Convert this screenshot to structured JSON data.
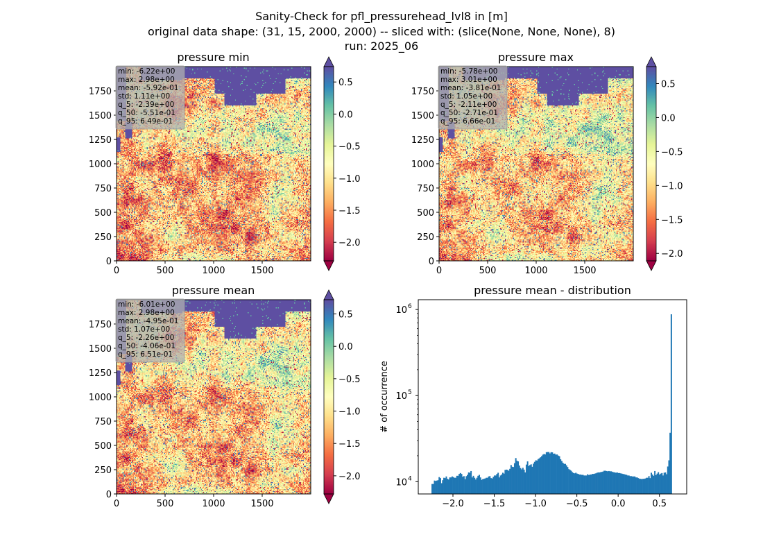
{
  "figure": {
    "title_lines": [
      "Sanity-Check for pfl_pressurehead_lvl8 in [m]",
      "original data shape: (31, 15, 2000, 2000) -- sliced with: (slice(None, None, None), 8)",
      "run: 2025_06"
    ]
  },
  "colors": {
    "colormap": "Spectral",
    "ocean": "#5e4fa2",
    "hist_bar": "#1f77b4",
    "stats_box": "#b0b0b0"
  },
  "chart_data": [
    {
      "type": "heatmap",
      "title": "pressure min",
      "colormap": "Spectral",
      "x_ticks": [
        "0",
        "500",
        "1000",
        "1500"
      ],
      "x_tick_values": [
        0,
        500,
        1000,
        1500
      ],
      "y_ticks": [
        "0",
        "250",
        "500",
        "750",
        "1000",
        "1250",
        "1500",
        "1750"
      ],
      "y_tick_values": [
        0,
        250,
        500,
        750,
        1000,
        1250,
        1500,
        1750
      ],
      "xlim": [
        0,
        2000
      ],
      "ylim": [
        0,
        2000
      ],
      "colorbar_ticks": [
        "0.5",
        "0.0",
        "−0.5",
        "−1.0",
        "−1.5",
        "−2.0"
      ],
      "colorbar_tick_values": [
        0.5,
        0.0,
        -0.5,
        -1.0,
        -1.5,
        -2.0
      ],
      "colorbar_range": [
        -2.29,
        0.74
      ],
      "seed": 11,
      "stats": [
        "min: -6.22e+00",
        "max: 2.98e+00",
        "mean: -5.92e-01",
        "std: 1.11e+00",
        "q_5: -2.39e+00",
        "q_50: -5.51e-01",
        "q_95: 6.49e-01"
      ]
    },
    {
      "type": "heatmap",
      "title": "pressure max",
      "colormap": "Spectral",
      "x_ticks": [
        "0",
        "500",
        "1000",
        "1500"
      ],
      "x_tick_values": [
        0,
        500,
        1000,
        1500
      ],
      "y_ticks": [
        "0",
        "250",
        "500",
        "750",
        "1000",
        "1250",
        "1500",
        "1750"
      ],
      "y_tick_values": [
        0,
        250,
        500,
        750,
        1000,
        1250,
        1500,
        1750
      ],
      "xlim": [
        0,
        2000
      ],
      "ylim": [
        0,
        2000
      ],
      "colorbar_ticks": [
        "0.5",
        "0.0",
        "−0.5",
        "−1.0",
        "−1.5",
        "−2.0"
      ],
      "colorbar_tick_values": [
        0.5,
        0.0,
        -0.5,
        -1.0,
        -1.5,
        -2.0
      ],
      "colorbar_range": [
        -2.11,
        0.75
      ],
      "seed": 23,
      "stats": [
        "min: -5.78e+00",
        "max: 3.01e+00",
        "mean: -3.81e-01",
        "std: 1.05e+00",
        "q_5: -2.11e+00",
        "q_50: -2.71e-01",
        "q_95: 6.66e-01"
      ]
    },
    {
      "type": "heatmap",
      "title": "pressure mean",
      "colormap": "Spectral",
      "x_ticks": [
        "0",
        "500",
        "1000",
        "1500"
      ],
      "x_tick_values": [
        0,
        500,
        1000,
        1500
      ],
      "y_ticks": [
        "0",
        "250",
        "500",
        "750",
        "1000",
        "1250",
        "1500",
        "1750"
      ],
      "y_tick_values": [
        0,
        250,
        500,
        750,
        1000,
        1250,
        1500,
        1750
      ],
      "xlim": [
        0,
        2000
      ],
      "ylim": [
        0,
        2000
      ],
      "colorbar_ticks": [
        "0.5",
        "0.0",
        "−0.5",
        "−1.0",
        "−1.5",
        "−2.0"
      ],
      "colorbar_tick_values": [
        0.5,
        0.0,
        -0.5,
        -1.0,
        -1.5,
        -2.0
      ],
      "colorbar_range": [
        -2.28,
        0.72
      ],
      "seed": 37,
      "stats": [
        "min: -6.01e+00",
        "max: 2.98e+00",
        "mean: -4.95e-01",
        "std: 1.07e+00",
        "q_5: -2.26e+00",
        "q_50: -4.06e-01",
        "q_95: 6.51e-01"
      ]
    },
    {
      "type": "bar",
      "title": "pressure mean - distribution",
      "ylabel": "# of occurrence",
      "xlabel": "",
      "log_y": true,
      "xlim": [
        -2.42,
        0.83
      ],
      "ylim": [
        7200,
        1300000
      ],
      "x_ticks": [
        "−2.0",
        "−1.5",
        "−1.0",
        "−0.5",
        "0.0",
        "0.5"
      ],
      "x_tick_values": [
        -2.0,
        -1.5,
        -1.0,
        -0.5,
        0.0,
        0.5
      ],
      "y_ticks": [
        {
          "base": "10",
          "exp": "4",
          "value": 10000
        },
        {
          "base": "10",
          "exp": "5",
          "value": 100000
        },
        {
          "base": "10",
          "exp": "6",
          "value": 1000000
        }
      ],
      "bin_range": [
        -2.26,
        0.65
      ],
      "bins": 200,
      "counts": [
        9400,
        9400,
        10300,
        10200,
        10300,
        10400,
        11300,
        11000,
        9600,
        10400,
        11100,
        11000,
        11500,
        10800,
        10600,
        11200,
        11200,
        11500,
        11300,
        11100,
        11100,
        11700,
        11700,
        12300,
        12600,
        12300,
        11400,
        11600,
        10700,
        11600,
        12000,
        12800,
        12700,
        13300,
        11200,
        11700,
        11100,
        10600,
        11100,
        11700,
        12000,
        11200,
        10500,
        10700,
        10800,
        10900,
        11100,
        11100,
        11500,
        11600,
        11000,
        10900,
        11400,
        11800,
        11800,
        12300,
        12700,
        11200,
        11800,
        12100,
        12700,
        12400,
        13700,
        13800,
        13700,
        13400,
        14100,
        15600,
        14900,
        14800,
        16400,
        18800,
        17500,
        17200,
        15400,
        14400,
        13900,
        14500,
        13800,
        12800,
        15800,
        17200,
        15200,
        15600,
        15900,
        14900,
        16200,
        17000,
        17700,
        17600,
        18300,
        18700,
        19200,
        19800,
        20600,
        21000,
        20700,
        22000,
        22100,
        22100,
        21300,
        22000,
        21900,
        21100,
        21200,
        20600,
        20700,
        20100,
        19800,
        18200,
        17400,
        16600,
        16100,
        16100,
        15500,
        14800,
        14000,
        13700,
        13400,
        12900,
        12600,
        12500,
        12700,
        12400,
        12300,
        12100,
        12100,
        12000,
        12000,
        11800,
        11800,
        11800,
        12200,
        11900,
        12100,
        12100,
        12300,
        12300,
        12400,
        12500,
        12700,
        12800,
        12800,
        12900,
        13000,
        13100,
        13400,
        13400,
        13300,
        13200,
        13300,
        13200,
        13200,
        13000,
        12900,
        12800,
        12700,
        12800,
        12600,
        12600,
        12500,
        12400,
        12300,
        12200,
        12100,
        12000,
        11800,
        11800,
        11600,
        11600,
        11500,
        11500,
        11500,
        11200,
        11200,
        11000,
        10800,
        10800,
        10700,
        10800,
        10800,
        10900,
        11100,
        11100,
        11600,
        11000,
        12700,
        12100,
        11700,
        13300,
        11900,
        12400,
        12900,
        12100,
        12400,
        12600,
        11800,
        12700,
        12800,
        12200,
        15000,
        17700,
        37000,
        880000
      ]
    }
  ]
}
